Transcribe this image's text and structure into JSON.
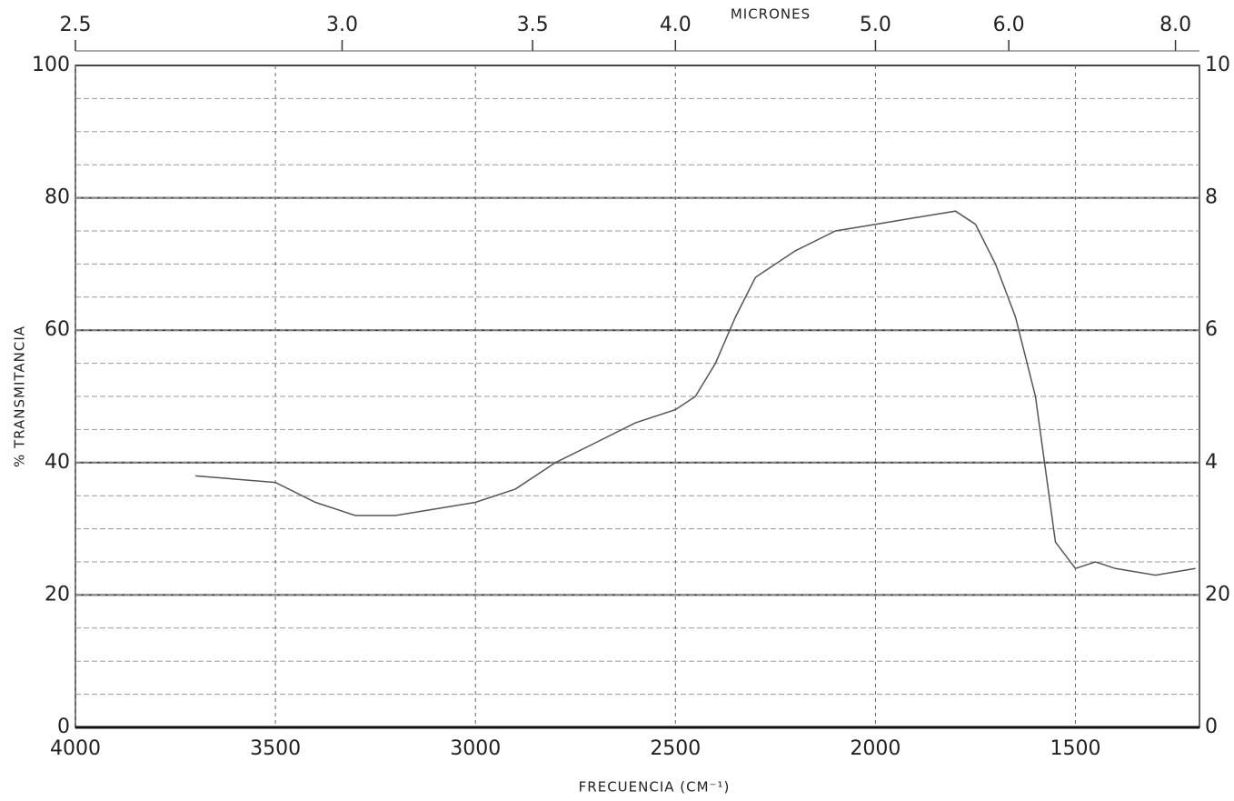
{
  "chart_data": {
    "type": "line",
    "title": "MICRONES",
    "x_label": "FRECUENCIA (CM⁻¹)",
    "y_label": "% TRANSMITANCIA",
    "x": [
      3700,
      3500,
      3400,
      3300,
      3200,
      3100,
      3000,
      2900,
      2800,
      2700,
      2600,
      2500,
      2450,
      2400,
      2350,
      2300,
      2200,
      2100,
      2000,
      1900,
      1800,
      1750,
      1700,
      1650,
      1600,
      1550,
      1500,
      1450,
      1400,
      1300,
      1200
    ],
    "series": [
      {
        "color": "#555555",
        "values": [
          38,
          37,
          34,
          32,
          32,
          33,
          34,
          36,
          40,
          43,
          46,
          48,
          50,
          55,
          62,
          68,
          72,
          75,
          76,
          77,
          78,
          76,
          70,
          62,
          50,
          28,
          24,
          25,
          24,
          23,
          24
        ]
      }
    ],
    "xlim": [
      4000,
      1190
    ],
    "ylim": [
      0,
      100
    ],
    "xticks": [
      4000,
      3500,
      3000,
      2500,
      2000,
      1500
    ],
    "yticks": [
      0,
      20,
      40,
      60,
      80,
      100
    ],
    "right_labels": [
      "0",
      "20",
      "4",
      "6",
      "8",
      "10"
    ],
    "x2ticks": [
      2.5,
      {
        "value": 3,
        "label": "3.0"
      },
      3.5,
      {
        "value": 4,
        "label": "4.0"
      },
      {
        "value": 5,
        "label": "5.0"
      },
      {
        "value": 6,
        "label": "6.0"
      },
      {
        "value": 8,
        "label": "8.0"
      }
    ],
    "grid": true
  }
}
